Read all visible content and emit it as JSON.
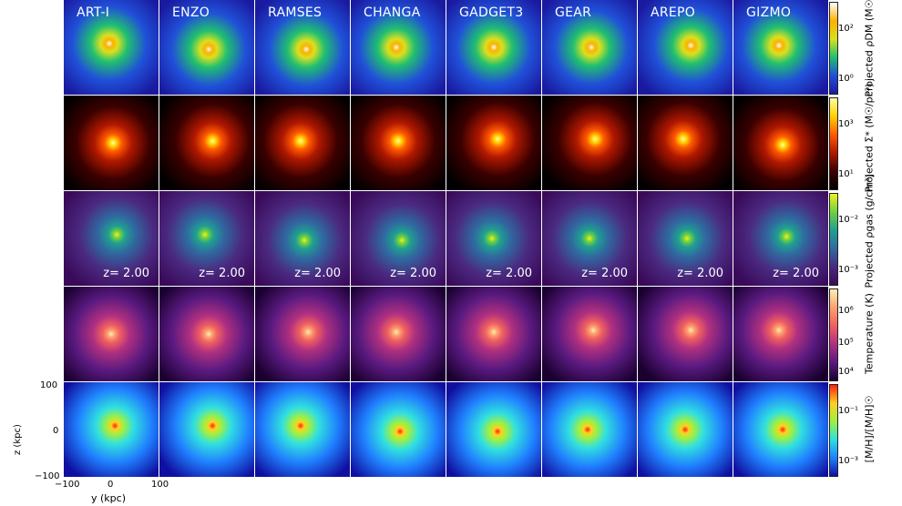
{
  "codes": [
    "ART-I",
    "ENZO",
    "RAMSES",
    "CHANGA",
    "GADGET3",
    "GEAR",
    "AREPO",
    "GIZMO"
  ],
  "redshift_label": "z= 2.00",
  "rows": [
    {
      "name": "dm",
      "colorbar_label": "Projected ρDM (M☉/pc²)",
      "ticks": [
        "10²",
        "10⁰"
      ],
      "colors": [
        "#1a1aa0",
        "#2050d8",
        "#20c070",
        "#d8e020",
        "#ffb000",
        "#ffffff"
      ]
    },
    {
      "name": "stars",
      "colorbar_label": "Projected Σ* (M☉/pc²)",
      "ticks": [
        "10³",
        "10¹"
      ],
      "colors": [
        "#000000",
        "#3a0000",
        "#b01800",
        "#ff5a00",
        "#ffd000",
        "#ffffa0"
      ]
    },
    {
      "name": "gas",
      "colorbar_label": "Projected ρgas (g/cm³)",
      "ticks": [
        "10⁻²",
        "10⁻³"
      ],
      "colors": [
        "#3a0a5a",
        "#4a2a80",
        "#2f6aa0",
        "#20a090",
        "#70d040",
        "#f0f020"
      ]
    },
    {
      "name": "temperature",
      "colorbar_label": "Temperature (K)",
      "ticks": [
        "10⁶",
        "10⁵",
        "10⁴"
      ],
      "colors": [
        "#1a0030",
        "#5a1a80",
        "#b03080",
        "#f06060",
        "#fca070",
        "#fff0b0"
      ]
    },
    {
      "name": "metallicity",
      "colorbar_label": "[M/H]/[M/H]☉",
      "ticks": [
        "10⁻¹",
        "10⁻³"
      ],
      "colors": [
        "#1010a0",
        "#2080ff",
        "#30e0e0",
        "#a0f040",
        "#ffd020",
        "#ff2010"
      ]
    }
  ],
  "axes": {
    "ylabel": "z  (kpc)",
    "xlabel": "y  (kpc)",
    "yticks": [
      "100",
      "0",
      "−100"
    ],
    "xticks": [
      "−100",
      "0",
      "100"
    ]
  }
}
